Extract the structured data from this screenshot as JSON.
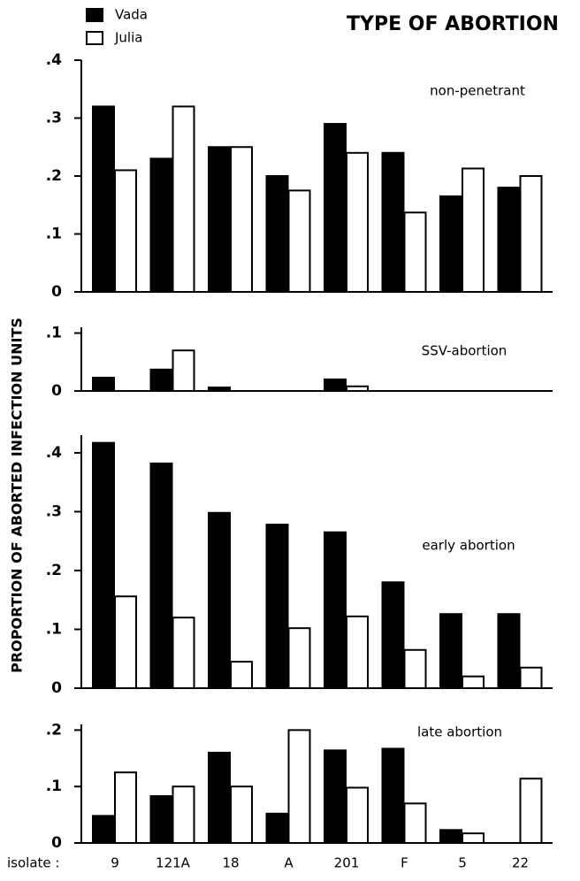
{
  "chart_data": [
    {
      "type": "bar",
      "title": "TYPE OF ABORTION",
      "y_label": "PROPORTION OF ABORTED INFECTION UNITS",
      "annotation": "non-penetrant",
      "series": [
        {
          "name": "Vada",
          "color": "#000000",
          "values": [
            0.32,
            0.23,
            0.25,
            0.2,
            0.29,
            0.24,
            0.165,
            0.18
          ]
        },
        {
          "name": "Julia",
          "color": "#ffffff",
          "values": [
            0.21,
            0.32,
            0.25,
            0.175,
            0.24,
            0.137,
            0.213,
            0.2
          ]
        }
      ],
      "ylim": [
        0,
        0.4
      ],
      "yticks": [
        0,
        {
          "value": 0.1,
          "label": ".1"
        },
        {
          "value": 0.2,
          "label": ".2"
        },
        {
          "value": 0.3,
          "label": ".3"
        },
        {
          "value": 0.4,
          "label": ".4"
        }
      ]
    },
    {
      "type": "bar",
      "annotation": "SSV-abortion",
      "series": [
        {
          "color": "#000000",
          "values": [
            0.023,
            0.037,
            0.006,
            0,
            0.02,
            0,
            0,
            0
          ]
        },
        {
          "color": "#ffffff",
          "values": [
            0,
            0.07,
            0,
            0,
            0.008,
            0,
            0,
            0
          ]
        }
      ],
      "ylim": [
        0,
        0.11
      ],
      "yticks": [
        0,
        {
          "value": 0.1,
          "label": ".1"
        }
      ]
    },
    {
      "type": "bar",
      "annotation": "early abortion",
      "series": [
        {
          "color": "#000000",
          "values": [
            0.417,
            0.382,
            0.298,
            0.278,
            0.265,
            0.18,
            0.126,
            0.126
          ]
        },
        {
          "color": "#ffffff",
          "values": [
            0.156,
            0.12,
            0.045,
            0.102,
            0.122,
            0.065,
            0.02,
            0.035
          ]
        }
      ],
      "ylim": [
        0,
        0.43
      ],
      "yticks": [
        0,
        {
          "value": 0.1,
          "label": ".1"
        },
        {
          "value": 0.2,
          "label": ".2"
        },
        {
          "value": 0.3,
          "label": ".3"
        },
        {
          "value": 0.4,
          "label": ".4"
        }
      ]
    },
    {
      "type": "bar",
      "annotation": "late abortion",
      "x_label": "isolate :",
      "categories": [
        "9",
        "121A",
        "18",
        "A",
        "201",
        "F",
        "5",
        "22"
      ],
      "series": [
        {
          "color": "#000000",
          "values": [
            0.048,
            0.083,
            0.16,
            0.052,
            0.164,
            0.167,
            0.023,
            0
          ]
        },
        {
          "color": "#ffffff",
          "values": [
            0.125,
            0.1,
            0.1,
            0.2,
            0.098,
            0.07,
            0.017,
            0.114
          ]
        }
      ],
      "ylim": [
        0,
        0.21
      ],
      "yticks": [
        0,
        {
          "value": 0.1,
          "label": ".1"
        },
        {
          "value": 0.2,
          "label": ".2"
        }
      ]
    }
  ]
}
